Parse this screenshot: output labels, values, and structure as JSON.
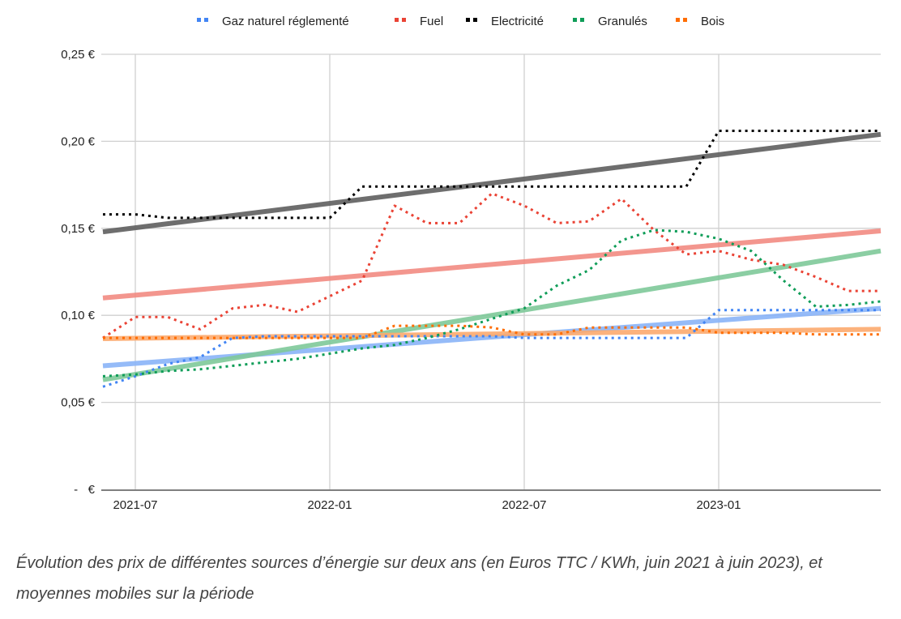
{
  "chart_data": {
    "type": "line",
    "title": "",
    "xlabel": "",
    "ylabel": "",
    "x": [
      "2021-06",
      "2021-07",
      "2021-08",
      "2021-09",
      "2021-10",
      "2021-11",
      "2021-12",
      "2022-01",
      "2022-02",
      "2022-03",
      "2022-04",
      "2022-05",
      "2022-06",
      "2022-07",
      "2022-08",
      "2022-09",
      "2022-10",
      "2022-11",
      "2022-12",
      "2023-01",
      "2023-02",
      "2023-03",
      "2023-04",
      "2023-05",
      "2023-06"
    ],
    "x_ticks": [
      "2021-07",
      "2022-01",
      "2022-07",
      "2023-01"
    ],
    "y_ticks": [
      {
        "value": 0,
        "label": "-   €"
      },
      {
        "value": 0.05,
        "label": "0,05 €"
      },
      {
        "value": 0.1,
        "label": "0,10 €"
      },
      {
        "value": 0.15,
        "label": "0,15 €"
      },
      {
        "value": 0.2,
        "label": "0,20 €"
      },
      {
        "value": 0.25,
        "label": "0,25 €"
      }
    ],
    "ylim": [
      0,
      0.25
    ],
    "grid": true,
    "legend_position": "top",
    "series": [
      {
        "name": "Gaz naturel réglementé",
        "color": "#4285f4",
        "trend_color": "#8ab4f8",
        "style": "dotted",
        "values": [
          0.059,
          0.065,
          0.072,
          0.076,
          0.087,
          0.088,
          0.088,
          0.088,
          0.088,
          0.088,
          0.088,
          0.088,
          0.088,
          0.087,
          0.087,
          0.087,
          0.087,
          0.087,
          0.087,
          0.103,
          0.103,
          0.103,
          0.103,
          0.103,
          0.103
        ],
        "trend": [
          0.071,
          0.104
        ]
      },
      {
        "name": "Fuel",
        "color": "#ea4335",
        "trend_color": "#f28b82",
        "style": "dotted",
        "values": [
          0.087,
          0.099,
          0.099,
          0.092,
          0.104,
          0.106,
          0.102,
          0.111,
          0.12,
          0.163,
          0.153,
          0.153,
          0.17,
          0.163,
          0.153,
          0.154,
          0.167,
          0.149,
          0.135,
          0.137,
          0.132,
          0.129,
          0.122,
          0.114,
          0.114
        ],
        "trend": [
          0.11,
          0.1485
        ]
      },
      {
        "name": "Electricité",
        "color": "#000000",
        "trend_color": "#5f5f5f",
        "style": "dotted",
        "values": [
          0.158,
          0.158,
          0.156,
          0.156,
          0.156,
          0.156,
          0.156,
          0.156,
          0.174,
          0.174,
          0.174,
          0.174,
          0.174,
          0.174,
          0.174,
          0.174,
          0.174,
          0.174,
          0.174,
          0.206,
          0.206,
          0.206,
          0.206,
          0.206,
          0.206
        ],
        "trend": [
          0.148,
          0.204
        ]
      },
      {
        "name": "Granulés",
        "color": "#0f9d58",
        "trend_color": "#7fc99a",
        "style": "dotted",
        "values": [
          0.065,
          0.066,
          0.068,
          0.069,
          0.071,
          0.073,
          0.075,
          0.078,
          0.081,
          0.083,
          0.087,
          0.092,
          0.098,
          0.104,
          0.117,
          0.126,
          0.143,
          0.149,
          0.148,
          0.144,
          0.137,
          0.12,
          0.105,
          0.106,
          0.108
        ],
        "trend": [
          0.063,
          0.137
        ]
      },
      {
        "name": "Bois",
        "color": "#ff6d01",
        "trend_color": "#fcaa6e",
        "style": "dotted",
        "values": [
          0.087,
          0.087,
          0.087,
          0.087,
          0.087,
          0.087,
          0.087,
          0.087,
          0.087,
          0.094,
          0.094,
          0.094,
          0.093,
          0.089,
          0.089,
          0.093,
          0.093,
          0.093,
          0.093,
          0.09,
          0.09,
          0.09,
          0.089,
          0.089,
          0.089
        ],
        "trend": [
          0.0866,
          0.092
        ]
      }
    ]
  },
  "caption": "Évolution des prix de différentes sources d’énergie sur deux ans (en Euros TTC / KWh, juin 2021 à juin 2023), et moyennes mobiles sur la période"
}
